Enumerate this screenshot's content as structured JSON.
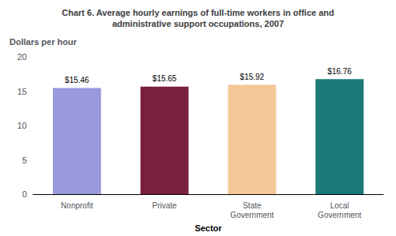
{
  "chart_data": {
    "type": "bar",
    "title": "Chart 6. Average hourly earnings of full-time workers in office and\nadministrative support occupations, 2007",
    "xlabel": "Sector",
    "ylabel": "Dollars per hour",
    "categories": [
      "Nonprofit",
      "Private",
      "State\nGovernment",
      "Local\nGovernment"
    ],
    "values": [
      15.46,
      15.65,
      15.92,
      16.76
    ],
    "value_labels": [
      "$15.46",
      "$15.65",
      "$15.92",
      "$16.76"
    ],
    "colors": [
      "#9999dd",
      "#7a1f3d",
      "#f5c89a",
      "#1a7a78"
    ],
    "ylim": [
      0,
      20
    ],
    "yticks": [
      0,
      5,
      10,
      15,
      20
    ],
    "grid": false,
    "data_labels": true
  }
}
